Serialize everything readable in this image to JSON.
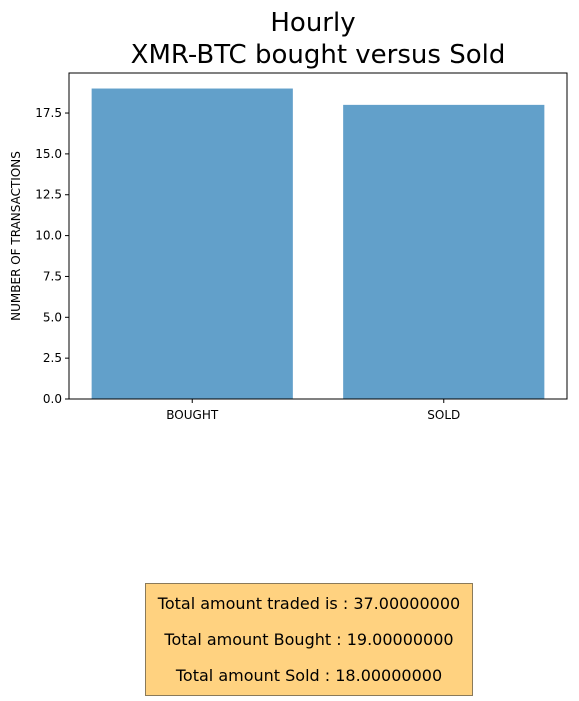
{
  "chart_data": {
    "type": "bar",
    "title": [
      "Hourly",
      "XMR-BTC bought versus Sold"
    ],
    "xlabel": "",
    "ylabel": "NUMBER OF TRANSACTIONS",
    "categories": [
      "BOUGHT",
      "SOLD"
    ],
    "values": [
      19,
      18
    ],
    "ylim": [
      0,
      19.95
    ],
    "yticks": [
      "0.0",
      "2.5",
      "5.0",
      "7.5",
      "10.0",
      "12.5",
      "15.0",
      "17.5"
    ],
    "ytick_values": [
      0,
      2.5,
      5,
      7.5,
      10,
      12.5,
      15,
      17.5
    ],
    "bar_color": "#1f77b4",
    "bar_alpha": 0.7,
    "grid": false
  },
  "summary": {
    "total_traded": "Total amount traded is : 37.00000000",
    "total_bought": "Total amount Bought : 19.00000000",
    "total_sold": "Total amount Sold : 18.00000000",
    "background_color": "#ffd280"
  }
}
